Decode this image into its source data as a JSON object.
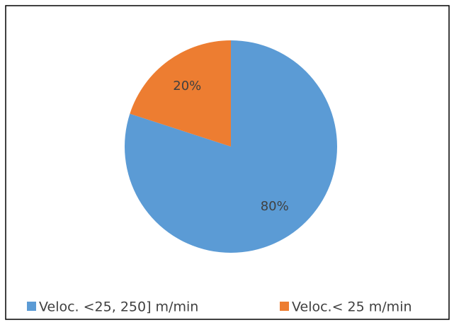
{
  "chart_data": {
    "type": "pie",
    "categories": [
      "Veloc. <25, 250] m/min",
      "Veloc.< 25 m/min"
    ],
    "values": [
      80,
      20
    ],
    "value_labels": [
      "80%",
      "20%"
    ],
    "colors": [
      "#5b9bd5",
      "#ed7d31"
    ]
  }
}
